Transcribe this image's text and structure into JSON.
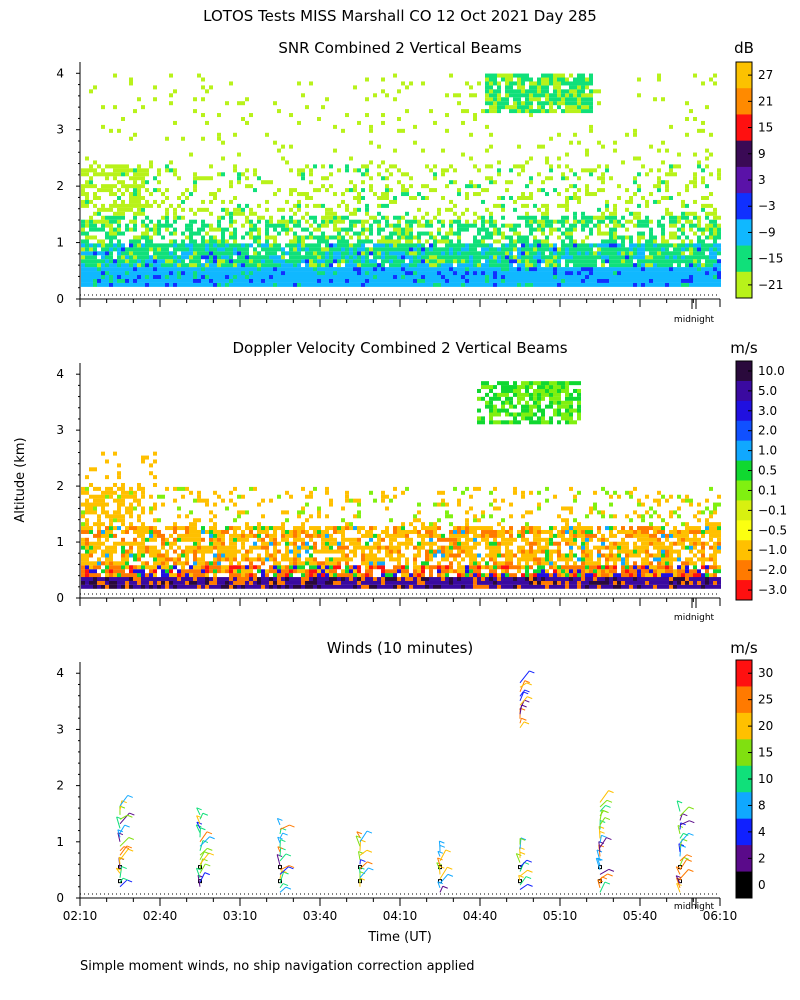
{
  "main_title": "LOTOS Tests MISS Marshall CO  12 Oct 2021 Day 285",
  "footnote": "Simple moment winds, no ship navigation correction applied",
  "y_axis_label": "Altitude (km)",
  "x_axis_label": "Time (UT)",
  "midnight_label": "midnight",
  "colors": {
    "axis": "#000000",
    "background": "#ffffff"
  },
  "chart_data": [
    {
      "type": "heatmap",
      "title": "SNR Combined 2 Vertical Beams",
      "ylim": [
        0,
        4
      ],
      "yticks": [
        "0",
        "1",
        "2",
        "3",
        "4"
      ],
      "colorbar": {
        "unit": "dB",
        "labels": [
          "27",
          "21",
          "15",
          "9",
          "3",
          "−3",
          "−9",
          "−15",
          "−21"
        ],
        "colors": [
          "#fcc200",
          "#ff8a00",
          "#ff1010",
          "#3a0a55",
          "#5a12a8",
          "#1030ff",
          "#10b8ff",
          "#10e07a",
          "#b8f21a"
        ]
      },
      "layers": [
        {
          "label": "−9",
          "color": "#10b8ff",
          "coverage": "0.25–0.6 km continuous"
        },
        {
          "label": "−15",
          "color": "#10e07a",
          "coverage": "0.4–1.5 km, patch 3.3–4.0 km near 04:55"
        },
        {
          "label": "−21",
          "color": "#b8f21a",
          "coverage": "scattered to 4 km"
        }
      ]
    },
    {
      "type": "heatmap",
      "title": "Doppler Velocity Combined 2 Vertical Beams",
      "ylim": [
        0,
        4
      ],
      "yticks": [
        "0",
        "1",
        "2",
        "3",
        "4"
      ],
      "colorbar": {
        "unit": "m/s",
        "labels": [
          "10.0",
          "5.0",
          "3.0",
          "2.0",
          "1.0",
          "0.5",
          "0.1",
          "−0.1",
          "−0.5",
          "−1.0",
          "−2.0",
          "−3.0"
        ],
        "colors": [
          "#2a0a3c",
          "#3a0aa0",
          "#2010e0",
          "#1050ff",
          "#10a8ff",
          "#10d830",
          "#80f010",
          "#d8f010",
          "#fcff10",
          "#ffc000",
          "#ff7a00",
          "#ff1010"
        ]
      },
      "layers": [
        {
          "label": "−1.0",
          "color": "#ffc000",
          "coverage": "0.3–1.8 km"
        },
        {
          "label": "10.0",
          "color": "#2a0a3c",
          "coverage": "0.2–0.35 km"
        }
      ]
    },
    {
      "type": "scatter",
      "title": "Winds (10 minutes)",
      "xlabel": "Time (UT)",
      "ylabel": "Altitude (km)",
      "ylim": [
        0,
        4
      ],
      "yticks": [
        "0",
        "1",
        "2",
        "3",
        "4"
      ],
      "xticks": [
        "02:10",
        "02:40",
        "03:10",
        "03:40",
        "04:10",
        "04:40",
        "05:10",
        "05:40",
        "06:10"
      ],
      "colorbar": {
        "unit": "m/s",
        "labels": [
          "30",
          "25",
          "20",
          "15",
          "10",
          "8",
          "4",
          "2",
          "0"
        ],
        "colors": [
          "#ff1010",
          "#ff7a00",
          "#ffc000",
          "#80e010",
          "#10e07a",
          "#10a8ff",
          "#1020ff",
          "#5a0a8a",
          "#000000"
        ]
      },
      "profiles": [
        {
          "time": "02:25",
          "alt_range": [
            0.2,
            1.7
          ]
        },
        {
          "time": "02:55",
          "alt_range": [
            0.2,
            1.55
          ]
        },
        {
          "time": "03:25",
          "alt_range": [
            0.1,
            1.35
          ]
        },
        {
          "time": "03:55",
          "alt_range": [
            0.2,
            1.15
          ]
        },
        {
          "time": "04:25",
          "alt_range": [
            0.1,
            0.95
          ]
        },
        {
          "time": "04:55",
          "alt_range": [
            0.15,
            3.9
          ]
        },
        {
          "time": "05:25",
          "alt_range": [
            0.1,
            1.75
          ]
        },
        {
          "time": "05:55",
          "alt_range": [
            0.1,
            1.55
          ]
        }
      ]
    }
  ]
}
